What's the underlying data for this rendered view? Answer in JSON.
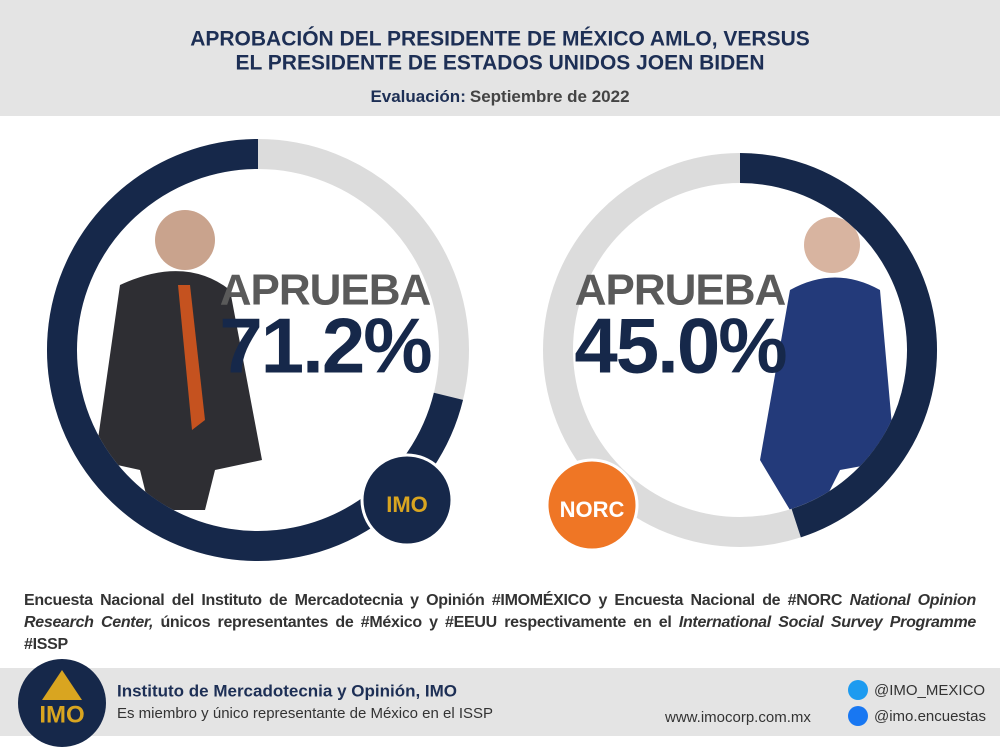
{
  "header": {
    "title_lines": [
      "APROBACIÓN DEL PRESIDENTE DE MÉXICO AMLO, VERSUS",
      "EL PRESIDENTE DE ESTADOS UNIDOS JOEN BIDEN"
    ],
    "subtitle_label": "Evaluación:",
    "subtitle_value": "Septiembre de 2022"
  },
  "chart_data": [
    {
      "type": "donut",
      "label": "APRUEBA",
      "values": [
        71.2
      ],
      "value_labels": [
        "71.2%"
      ],
      "color": "#16284a",
      "track_color": "#dcdcdc",
      "direction": "counterclockwise",
      "logo": "IMO"
    },
    {
      "type": "donut",
      "label": "APRUEBA",
      "values": [
        45.0
      ],
      "value_labels": [
        "45.0%"
      ],
      "color": "#16284a",
      "track_color": "#dcdcdc",
      "direction": "clockwise",
      "logo": "NORC"
    }
  ],
  "note": [
    {
      "text": "Encuesta Nacional del Instituto de Mercadotecnia y Opinión #IMOMÉXICO y Encuesta Nacional de #NORC ",
      "italic": false
    },
    {
      "text": "National Opinion Research Center,",
      "italic": true
    },
    {
      "text": " únicos representantes de #México y #EEUU respectivamente en el ",
      "italic": false
    },
    {
      "text": "International Social Survey Programme",
      "italic": true
    },
    {
      "text": " #ISSP",
      "italic": false
    }
  ],
  "footer": {
    "logo": "IMO",
    "org": "Instituto de Mercadotecnia y Opinión, IMO",
    "description": "Es miembro y único representante de México en el ISSP",
    "website": "www.imocorp.com.mx",
    "twitter": "@IMO_MEXICO",
    "facebook": "@imo.encuestas"
  }
}
